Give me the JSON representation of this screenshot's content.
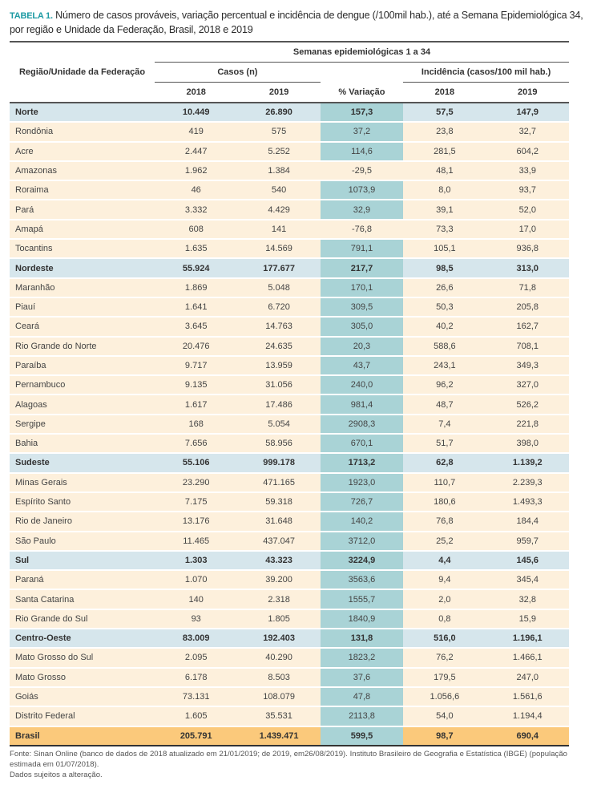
{
  "title": {
    "label": "TABELA 1.",
    "text": "Número de casos prováveis, variação percentual e incidência de dengue (/100mil hab.), até a Semana Epidemiológica 34, por região e Unidade da Federação, Brasil, 2018 e 2019"
  },
  "header": {
    "row_label": "Região/Unidade da Federação",
    "group": "Semanas epidemiológicas  1 a 34",
    "cases": "Casos (n)",
    "incidence": "Incidência (casos/100 mil hab.)",
    "columns": [
      "2018",
      "2019",
      "% Variação",
      "2018",
      "2019"
    ]
  },
  "colors": {
    "accent": "#1c9aa3",
    "row": "#fdf0dc",
    "region": "#d6e6ec",
    "variation": "#a9d3d6",
    "total": "#fbc97b"
  },
  "rows": [
    {
      "type": "region",
      "name": "Norte",
      "c2018": "10.449",
      "c2019": "26.890",
      "var": "157,3",
      "i2018": "57,5",
      "i2019": "147,9"
    },
    {
      "type": "state",
      "name": "Rondônia",
      "c2018": "419",
      "c2019": "575",
      "var": "37,2",
      "i2018": "23,8",
      "i2019": "32,7"
    },
    {
      "type": "state",
      "name": "Acre",
      "c2018": "2.447",
      "c2019": "5.252",
      "var": "114,6",
      "i2018": "281,5",
      "i2019": "604,2"
    },
    {
      "type": "state",
      "name": "Amazonas",
      "c2018": "1.962",
      "c2019": "1.384",
      "var": "-29,5",
      "i2018": "48,1",
      "i2019": "33,9"
    },
    {
      "type": "state",
      "name": "Roraima",
      "c2018": "46",
      "c2019": "540",
      "var": "1073,9",
      "i2018": "8,0",
      "i2019": "93,7"
    },
    {
      "type": "state",
      "name": "Pará",
      "c2018": "3.332",
      "c2019": "4.429",
      "var": "32,9",
      "i2018": "39,1",
      "i2019": "52,0"
    },
    {
      "type": "state",
      "name": "Amapá",
      "c2018": "608",
      "c2019": "141",
      "var": "-76,8",
      "i2018": "73,3",
      "i2019": "17,0"
    },
    {
      "type": "state",
      "name": "Tocantins",
      "c2018": "1.635",
      "c2019": "14.569",
      "var": "791,1",
      "i2018": "105,1",
      "i2019": "936,8"
    },
    {
      "type": "region",
      "name": "Nordeste",
      "c2018": "55.924",
      "c2019": "177.677",
      "var": "217,7",
      "i2018": "98,5",
      "i2019": "313,0"
    },
    {
      "type": "state",
      "name": "Maranhão",
      "c2018": "1.869",
      "c2019": "5.048",
      "var": "170,1",
      "i2018": "26,6",
      "i2019": "71,8"
    },
    {
      "type": "state",
      "name": "Piauí",
      "c2018": "1.641",
      "c2019": "6.720",
      "var": "309,5",
      "i2018": "50,3",
      "i2019": "205,8"
    },
    {
      "type": "state",
      "name": "Ceará",
      "c2018": "3.645",
      "c2019": "14.763",
      "var": "305,0",
      "i2018": "40,2",
      "i2019": "162,7"
    },
    {
      "type": "state",
      "name": "Rio Grande do Norte",
      "c2018": "20.476",
      "c2019": "24.635",
      "var": "20,3",
      "i2018": "588,6",
      "i2019": "708,1"
    },
    {
      "type": "state",
      "name": "Paraíba",
      "c2018": "9.717",
      "c2019": "13.959",
      "var": "43,7",
      "i2018": "243,1",
      "i2019": "349,3"
    },
    {
      "type": "state",
      "name": "Pernambuco",
      "c2018": "9.135",
      "c2019": "31.056",
      "var": "240,0",
      "i2018": "96,2",
      "i2019": "327,0"
    },
    {
      "type": "state",
      "name": "Alagoas",
      "c2018": "1.617",
      "c2019": "17.486",
      "var": "981,4",
      "i2018": "48,7",
      "i2019": "526,2"
    },
    {
      "type": "state",
      "name": "Sergipe",
      "c2018": "168",
      "c2019": "5.054",
      "var": "2908,3",
      "i2018": "7,4",
      "i2019": "221,8"
    },
    {
      "type": "state",
      "name": "Bahia",
      "c2018": "7.656",
      "c2019": "58.956",
      "var": "670,1",
      "i2018": "51,7",
      "i2019": "398,0"
    },
    {
      "type": "region",
      "name": "Sudeste",
      "c2018": "55.106",
      "c2019": "999.178",
      "var": "1713,2",
      "i2018": "62,8",
      "i2019": "1.139,2"
    },
    {
      "type": "state",
      "name": "Minas Gerais",
      "c2018": "23.290",
      "c2019": "471.165",
      "var": "1923,0",
      "i2018": "110,7",
      "i2019": "2.239,3"
    },
    {
      "type": "state",
      "name": "Espírito Santo",
      "c2018": "7.175",
      "c2019": "59.318",
      "var": "726,7",
      "i2018": "180,6",
      "i2019": "1.493,3"
    },
    {
      "type": "state",
      "name": "Rio de Janeiro",
      "c2018": "13.176",
      "c2019": "31.648",
      "var": "140,2",
      "i2018": "76,8",
      "i2019": "184,4"
    },
    {
      "type": "state",
      "name": "São Paulo",
      "c2018": "11.465",
      "c2019": "437.047",
      "var": "3712,0",
      "i2018": "25,2",
      "i2019": "959,7"
    },
    {
      "type": "region",
      "name": "Sul",
      "c2018": "1.303",
      "c2019": "43.323",
      "var": "3224,9",
      "i2018": "4,4",
      "i2019": "145,6"
    },
    {
      "type": "state",
      "name": "Paraná",
      "c2018": "1.070",
      "c2019": "39.200",
      "var": "3563,6",
      "i2018": "9,4",
      "i2019": "345,4"
    },
    {
      "type": "state",
      "name": "Santa Catarina",
      "c2018": "140",
      "c2019": "2.318",
      "var": "1555,7",
      "i2018": "2,0",
      "i2019": "32,8"
    },
    {
      "type": "state",
      "name": "Rio Grande do Sul",
      "c2018": "93",
      "c2019": "1.805",
      "var": "1840,9",
      "i2018": "0,8",
      "i2019": "15,9"
    },
    {
      "type": "region",
      "name": "Centro-Oeste",
      "c2018": "83.009",
      "c2019": "192.403",
      "var": "131,8",
      "i2018": "516,0",
      "i2019": "1.196,1"
    },
    {
      "type": "state",
      "name": "Mato Grosso do Sul",
      "c2018": "2.095",
      "c2019": "40.290",
      "var": "1823,2",
      "i2018": "76,2",
      "i2019": "1.466,1"
    },
    {
      "type": "state",
      "name": "Mato Grosso",
      "c2018": "6.178",
      "c2019": "8.503",
      "var": "37,6",
      "i2018": "179,5",
      "i2019": "247,0"
    },
    {
      "type": "state",
      "name": "Goiás",
      "c2018": "73.131",
      "c2019": "108.079",
      "var": "47,8",
      "i2018": "1.056,6",
      "i2019": "1.561,6"
    },
    {
      "type": "state",
      "name": "Distrito Federal",
      "c2018": "1.605",
      "c2019": "35.531",
      "var": "2113,8",
      "i2018": "54,0",
      "i2019": "1.194,4"
    },
    {
      "type": "total",
      "name": "Brasil",
      "c2018": "205.791",
      "c2019": "1.439.471",
      "var": "599,5",
      "i2018": "98,7",
      "i2019": "690,4"
    }
  ],
  "footer": {
    "source": "Fonte: Sinan Online (banco de dados de 2018 atualizado em 21/01/2019; de 2019, em26/08/2019). Instituto Brasileiro de Geografia e Estatística (IBGE) (população estimada em 01/07/2018).",
    "note": "Dados sujeitos a alteração."
  }
}
